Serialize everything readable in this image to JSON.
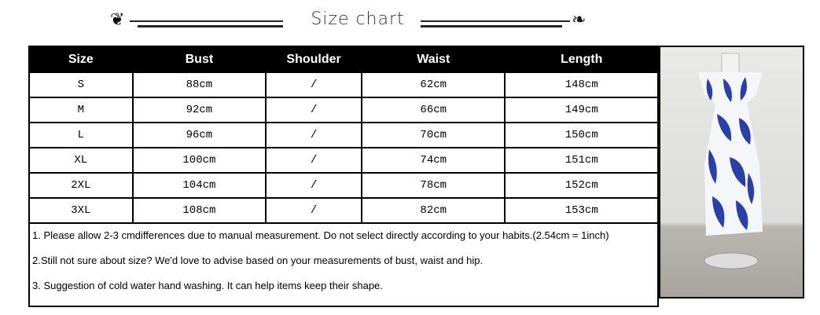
{
  "title": "Size chart",
  "table": {
    "headers": [
      "Size",
      "Bust",
      "Shoulder",
      "Waist",
      "Length"
    ],
    "rows": [
      [
        "S",
        "88cm",
        "/",
        "62cm",
        "148cm"
      ],
      [
        "M",
        "92cm",
        "/",
        "66cm",
        "149cm"
      ],
      [
        "L",
        "96cm",
        "/",
        "70cm",
        "150cm"
      ],
      [
        "XL",
        "100cm",
        "/",
        "74cm",
        "151cm"
      ],
      [
        "2XL",
        "104cm",
        "/",
        "78cm",
        "152cm"
      ],
      [
        "3XL",
        "108cm",
        "/",
        "82cm",
        "153cm"
      ]
    ],
    "notes": [
      "1.  Please allow 2-3 cmdifferences due to manual measurement. Do not select directly according to your habits.(2.54cm = 1inch)",
      "2.Still not sure about size? We'd love to advise based on your measurements of bust, waist and hip.",
      "3. Suggestion of cold water hand washing. It can help items keep their shape."
    ]
  },
  "colors": {
    "header_bg": "#000000",
    "dress_print": "#2a3fa8"
  }
}
